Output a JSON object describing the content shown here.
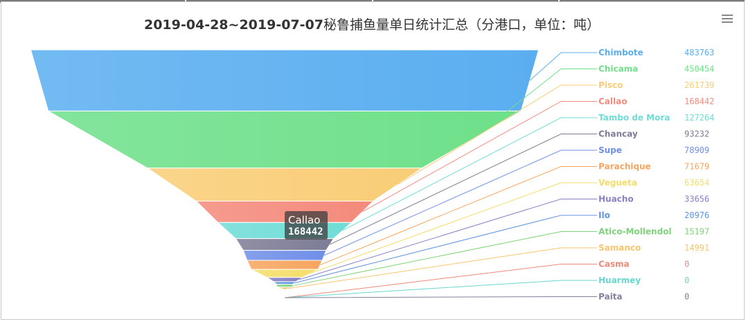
{
  "title": {
    "date_range": "2019-04-28~2019-07-07",
    "suffix": "秘鲁捕鱼量单日统计汇总（分港口，单位：吨）"
  },
  "menu_icon": "hamburger-menu-icon",
  "tooltip": {
    "name": "Callao",
    "value": "168442"
  },
  "chart_data": {
    "type": "funnel",
    "title": "2019-04-28~2019-07-07秘鲁捕鱼量单日统计汇总（分港口，单位：吨）",
    "categories": [
      "Chimbote",
      "Chicama",
      "Pisco",
      "Callao",
      "Tambo de Mora",
      "Chancay",
      "Supe",
      "Parachique",
      "Vegueta",
      "Huacho",
      "Ilo",
      "Atico-Mollendol",
      "Samanco",
      "Casma",
      "Huarmey",
      "Paita"
    ],
    "values": [
      483763,
      450454,
      261739,
      168442,
      127264,
      93232,
      78909,
      71679,
      63654,
      33656,
      20976,
      15197,
      14991,
      0,
      0,
      0
    ],
    "colors": [
      "#5aaef0",
      "#6ee08a",
      "#f9cd76",
      "#f48a7c",
      "#6fdcd6",
      "#7d7c96",
      "#6f8fe8",
      "#f6a55f",
      "#f5dd6a",
      "#8680c4",
      "#5f93e0",
      "#7fd27a",
      "#f7c56e",
      "#f0887a",
      "#67d6cf",
      "#818099"
    ],
    "legend_position": "right"
  }
}
